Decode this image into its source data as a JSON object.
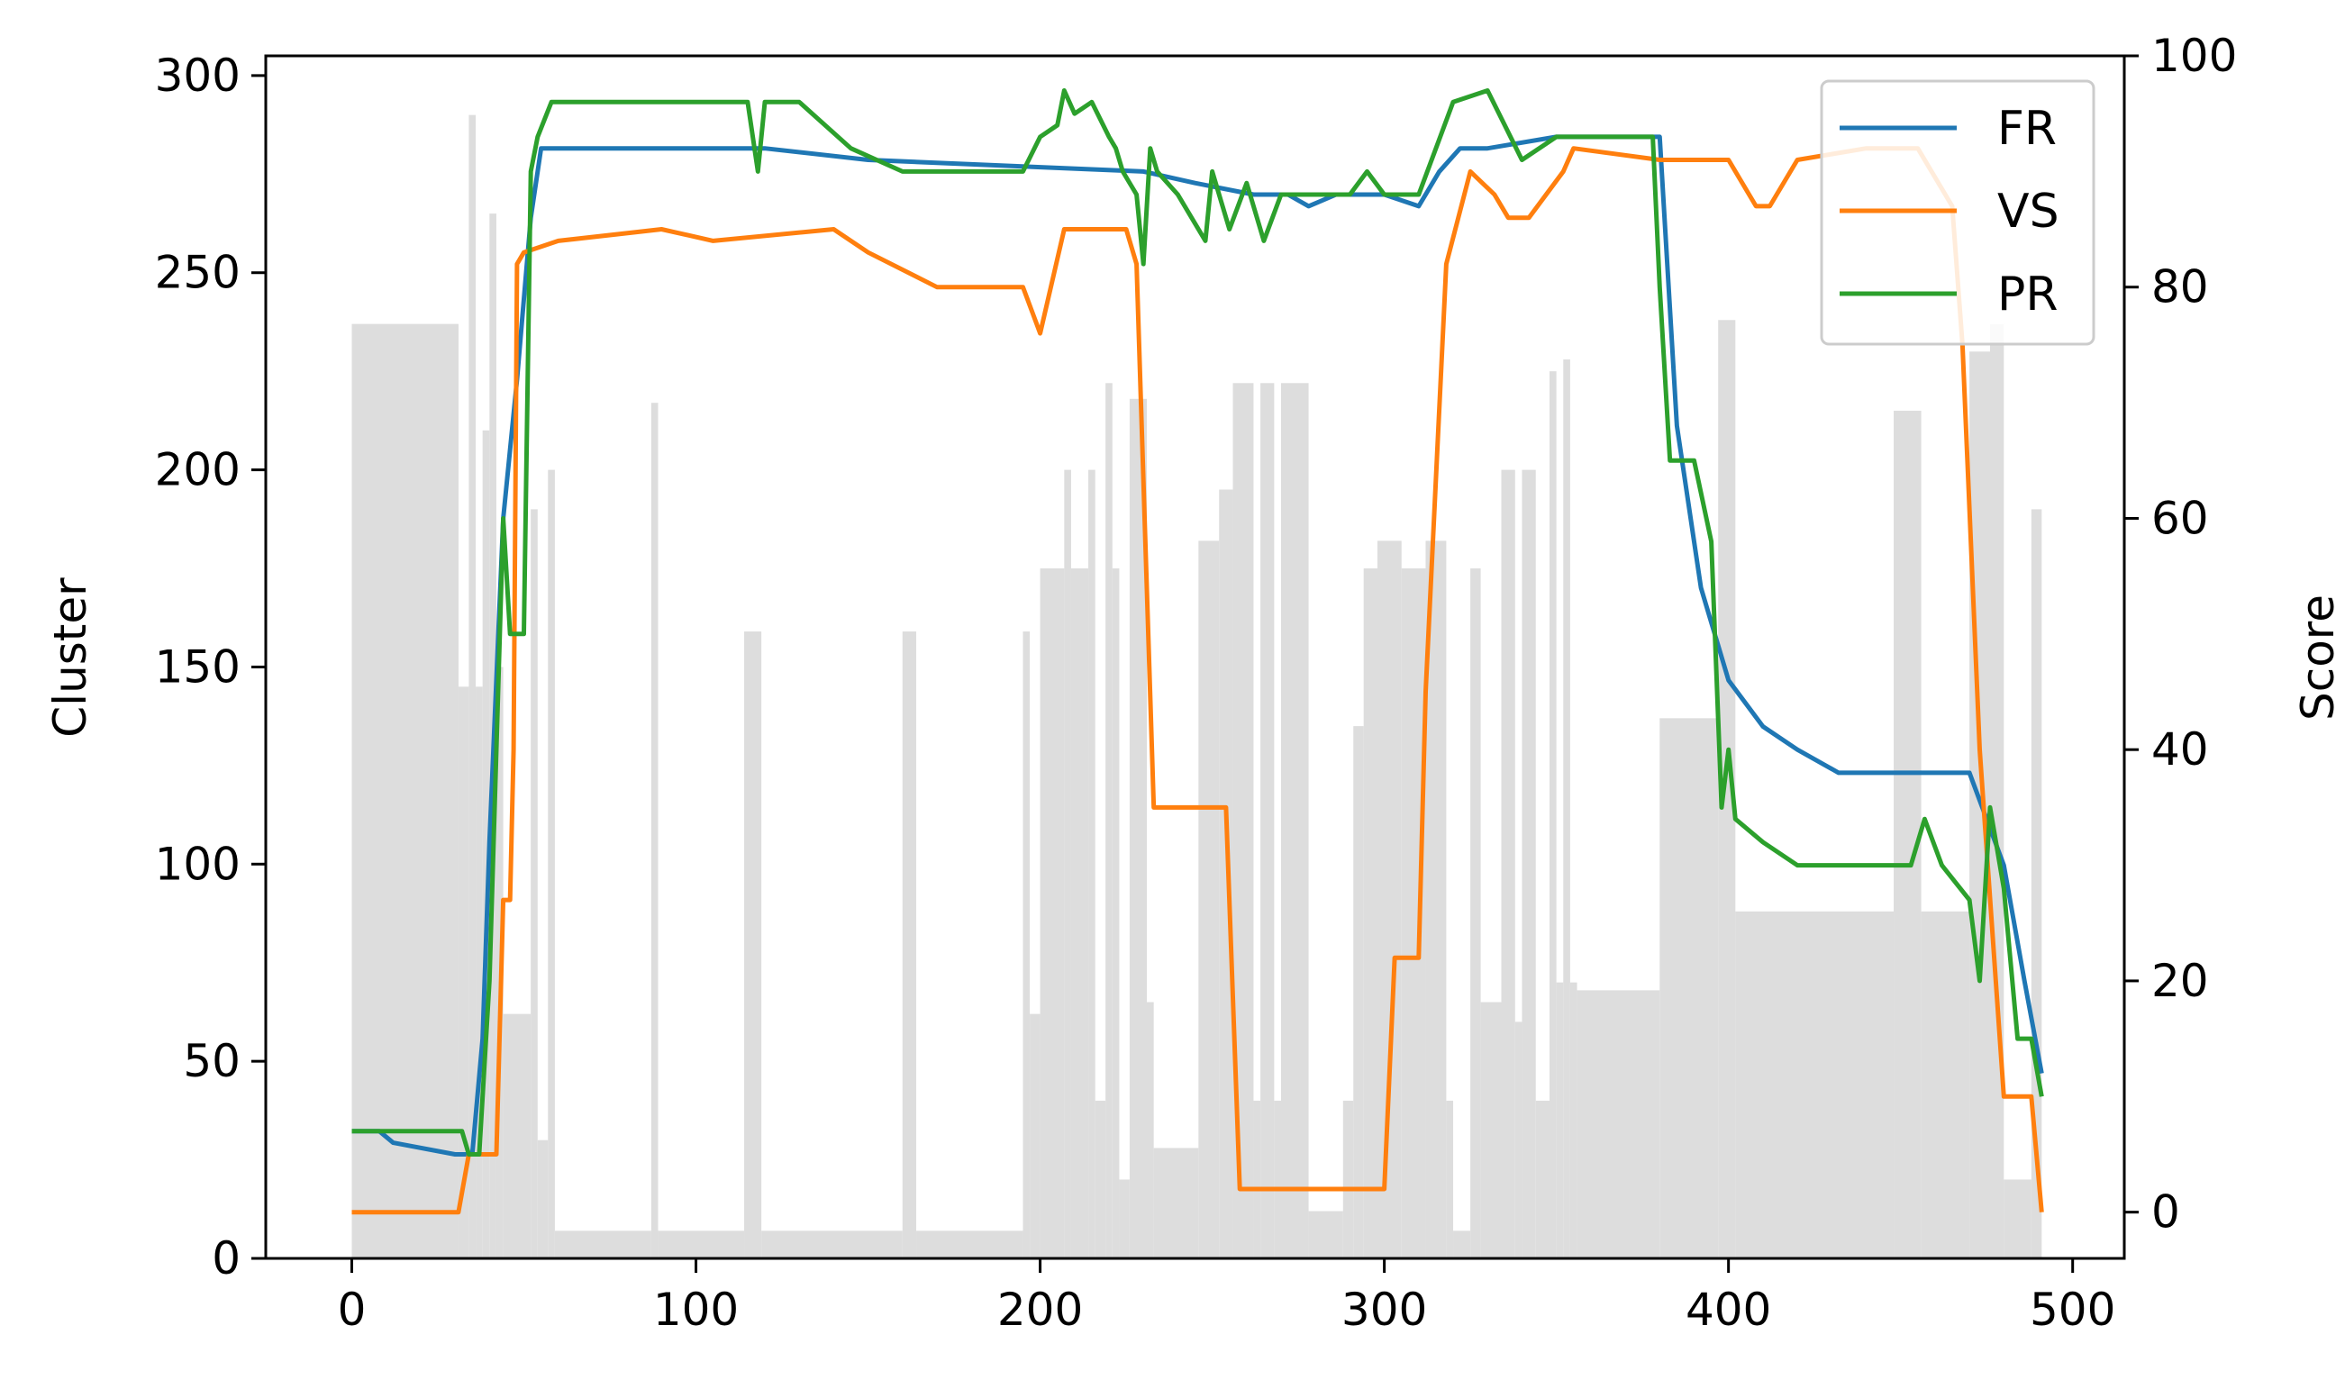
{
  "chart_data": {
    "type": "line",
    "title": "",
    "xlabel": "",
    "ylabel": "Cluster",
    "y2label": "Score",
    "xlim": [
      -25,
      515
    ],
    "ylim": [
      0,
      305
    ],
    "y2lim": [
      -4,
      100
    ],
    "xticks": [
      0,
      100,
      200,
      300,
      400,
      500
    ],
    "yticks": [
      0,
      50,
      100,
      150,
      200,
      250,
      300
    ],
    "y2ticks": [
      0,
      20,
      40,
      60,
      80,
      100
    ],
    "grid": false,
    "legend_position": "top-right",
    "bars": {
      "name": "Cluster",
      "axis": "left",
      "color": "#dddddd",
      "segments": [
        [
          0,
          31,
          237
        ],
        [
          31,
          34,
          145
        ],
        [
          34,
          36,
          290
        ],
        [
          36,
          38,
          145
        ],
        [
          38,
          40,
          210
        ],
        [
          40,
          42,
          265
        ],
        [
          42,
          44,
          150
        ],
        [
          44,
          52,
          62
        ],
        [
          52,
          54,
          190
        ],
        [
          54,
          57,
          30
        ],
        [
          57,
          59,
          200
        ],
        [
          59,
          87,
          7
        ],
        [
          87,
          89,
          217
        ],
        [
          89,
          114,
          7
        ],
        [
          114,
          119,
          159
        ],
        [
          119,
          160,
          7
        ],
        [
          160,
          164,
          159
        ],
        [
          164,
          195,
          7
        ],
        [
          195,
          197,
          159
        ],
        [
          197,
          200,
          62
        ],
        [
          200,
          207,
          175
        ],
        [
          207,
          209,
          200
        ],
        [
          209,
          214,
          175
        ],
        [
          214,
          216,
          200
        ],
        [
          216,
          219,
          40
        ],
        [
          219,
          221,
          222
        ],
        [
          221,
          223,
          175
        ],
        [
          223,
          226,
          20
        ],
        [
          226,
          231,
          218
        ],
        [
          231,
          233,
          65
        ],
        [
          233,
          246,
          28
        ],
        [
          246,
          252,
          182
        ],
        [
          252,
          256,
          195
        ],
        [
          256,
          262,
          222
        ],
        [
          262,
          264,
          40
        ],
        [
          264,
          268,
          222
        ],
        [
          268,
          270,
          40
        ],
        [
          270,
          278,
          222
        ],
        [
          278,
          288,
          12
        ],
        [
          288,
          291,
          40
        ],
        [
          291,
          294,
          135
        ],
        [
          294,
          298,
          175
        ],
        [
          298,
          305,
          182
        ],
        [
          305,
          312,
          175
        ],
        [
          312,
          318,
          182
        ],
        [
          318,
          320,
          40
        ],
        [
          320,
          325,
          7
        ],
        [
          325,
          328,
          175
        ],
        [
          328,
          334,
          65
        ],
        [
          334,
          338,
          200
        ],
        [
          338,
          340,
          60
        ],
        [
          340,
          344,
          200
        ],
        [
          344,
          348,
          40
        ],
        [
          348,
          350,
          225
        ],
        [
          350,
          352,
          70
        ],
        [
          352,
          354,
          228
        ],
        [
          354,
          356,
          70
        ],
        [
          356,
          380,
          68
        ],
        [
          380,
          397,
          137
        ],
        [
          397,
          402,
          238
        ],
        [
          402,
          448,
          88
        ],
        [
          448,
          456,
          215
        ],
        [
          456,
          470,
          88
        ],
        [
          470,
          476,
          230
        ],
        [
          476,
          480,
          237
        ],
        [
          480,
          488,
          20
        ],
        [
          488,
          491,
          190
        ]
      ]
    },
    "series": [
      {
        "name": "FR",
        "axis": "right",
        "color": "#1f77b4",
        "x": [
          0,
          8,
          12,
          30,
          35,
          38,
          40,
          44,
          48,
          52,
          55,
          60,
          110,
          120,
          150,
          230,
          245,
          262,
          272,
          278,
          286,
          300,
          310,
          316,
          322,
          330,
          350,
          380,
          385,
          392,
          400,
          410,
          420,
          432,
          450,
          470,
          480,
          486,
          491
        ],
        "y": [
          7,
          7,
          6,
          5,
          5,
          15,
          32,
          60,
          72,
          86,
          92,
          92,
          92,
          92,
          91,
          90,
          89,
          88,
          88,
          87,
          88,
          88,
          87,
          90,
          92,
          92,
          93,
          93,
          68,
          54,
          46,
          42,
          40,
          38,
          38,
          38,
          30,
          20,
          12
        ]
      },
      {
        "name": "VS",
        "axis": "right",
        "color": "#ff7f0e",
        "x": [
          0,
          31,
          34,
          42,
          44,
          46,
          47,
          48,
          50,
          60,
          90,
          105,
          140,
          150,
          170,
          195,
          200,
          207,
          225,
          228,
          233,
          240,
          247,
          254,
          258,
          280,
          300,
          303,
          310,
          312,
          318,
          325,
          332,
          336,
          342,
          352,
          355,
          380,
          400,
          408,
          412,
          420,
          440,
          455,
          465,
          468,
          473,
          480,
          485,
          488,
          491
        ],
        "y": [
          0,
          0,
          5,
          5,
          27,
          27,
          40,
          82,
          83,
          84,
          85,
          84,
          85,
          83,
          80,
          80,
          76,
          85,
          85,
          82,
          35,
          35,
          35,
          35,
          2,
          2,
          2,
          22,
          22,
          45,
          82,
          90,
          88,
          86,
          86,
          90,
          92,
          91,
          91,
          87,
          87,
          91,
          92,
          92,
          87,
          75,
          40,
          10,
          10,
          10,
          0
        ]
      },
      {
        "name": "PR",
        "axis": "right",
        "color": "#2ca02c",
        "x": [
          0,
          32,
          34,
          37,
          40,
          42,
          44,
          46,
          50,
          52,
          54,
          58,
          62,
          115,
          118,
          120,
          130,
          145,
          160,
          195,
          200,
          205,
          207,
          210,
          215,
          220,
          222,
          224,
          228,
          230,
          232,
          234,
          240,
          248,
          250,
          255,
          260,
          265,
          270,
          280,
          290,
          295,
          300,
          305,
          310,
          315,
          320,
          330,
          340,
          350,
          355,
          378,
          380,
          383,
          390,
          395,
          398,
          400,
          402,
          410,
          420,
          440,
          453,
          457,
          462,
          470,
          473,
          476,
          480,
          484,
          488,
          491
        ],
        "y": [
          7,
          7,
          5,
          5,
          20,
          40,
          60,
          50,
          50,
          90,
          93,
          96,
          96,
          96,
          90,
          96,
          96,
          92,
          90,
          90,
          93,
          94,
          97,
          95,
          96,
          93,
          92,
          90,
          88,
          82,
          92,
          90,
          88,
          84,
          90,
          85,
          89,
          84,
          88,
          88,
          88,
          90,
          88,
          88,
          88,
          92,
          96,
          97,
          91,
          93,
          93,
          93,
          80,
          65,
          65,
          58,
          35,
          40,
          34,
          32,
          30,
          30,
          30,
          34,
          30,
          27,
          20,
          35,
          28,
          15,
          15,
          10
        ]
      }
    ]
  }
}
